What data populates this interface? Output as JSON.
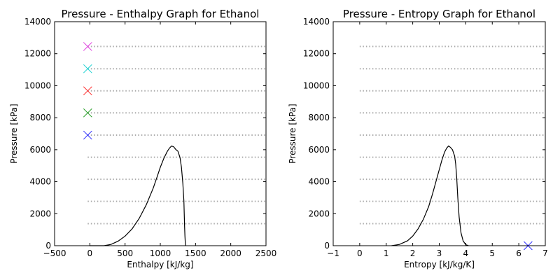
{
  "chart_data": [
    {
      "type": "line",
      "title": "Pressure - Enthalpy Graph for Ethanol",
      "xlabel": "Enthalpy [kJ/kg]",
      "ylabel": "Pressure [kPa]",
      "xlim": [
        -500,
        2500
      ],
      "ylim": [
        0,
        14000
      ],
      "xticks": [
        -500,
        0,
        500,
        1000,
        1500,
        2000,
        2500
      ],
      "yticks": [
        0,
        2000,
        4000,
        6000,
        8000,
        10000,
        12000,
        14000
      ],
      "grid": false,
      "saturation_dome": {
        "x": [
          0,
          200,
          300,
          400,
          500,
          600,
          700,
          800,
          900,
          950,
          1000,
          1050,
          1100,
          1130,
          1160,
          1190,
          1220,
          1250,
          1280,
          1300,
          1320,
          1335,
          1340,
          1345,
          1350,
          1355,
          1360
        ],
        "y": [
          0,
          0,
          80,
          280,
          600,
          1050,
          1700,
          2550,
          3600,
          4250,
          4900,
          5450,
          5900,
          6100,
          6230,
          6180,
          6020,
          5900,
          5500,
          4900,
          3900,
          2800,
          2000,
          1200,
          600,
          200,
          0
        ]
      },
      "isobars": {
        "pressures": [
          1380,
          2770,
          4150,
          5530,
          6910,
          8300,
          9680,
          11060,
          12450
        ],
        "x_range": [
          -30,
          2500
        ],
        "line_color": "#a9a9a9"
      },
      "markers": [
        {
          "x": -30,
          "y": 6910,
          "color": "#3232ff"
        },
        {
          "x": -30,
          "y": 8300,
          "color": "#2ca02c"
        },
        {
          "x": -30,
          "y": 9680,
          "color": "#ff3232"
        },
        {
          "x": -30,
          "y": 11060,
          "color": "#22d3d3"
        },
        {
          "x": -30,
          "y": 12450,
          "color": "#e03ce0"
        }
      ]
    },
    {
      "type": "line",
      "title": "Pressure - Entropy Graph for Ethanol",
      "xlabel": "Entropy [kJ/kg/K]",
      "ylabel": "Pressure [kPa]",
      "xlim": [
        -1,
        7
      ],
      "ylim": [
        0,
        14000
      ],
      "xticks": [
        -1,
        0,
        1,
        2,
        3,
        4,
        5,
        6,
        7
      ],
      "yticks": [
        0,
        2000,
        4000,
        6000,
        8000,
        10000,
        12000,
        14000
      ],
      "grid": false,
      "saturation_dome": {
        "x": [
          1.2,
          1.5,
          1.8,
          2.0,
          2.2,
          2.4,
          2.6,
          2.75,
          2.9,
          3.0,
          3.1,
          3.2,
          3.28,
          3.35,
          3.42,
          3.5,
          3.58,
          3.62,
          3.66,
          3.7,
          3.75,
          3.82,
          3.9,
          4.0,
          4.1
        ],
        "y": [
          0,
          80,
          300,
          600,
          1050,
          1650,
          2450,
          3250,
          4150,
          4750,
          5350,
          5850,
          6100,
          6230,
          6150,
          6000,
          5600,
          5100,
          4200,
          3000,
          1800,
          800,
          300,
          60,
          0
        ]
      },
      "isobars": {
        "pressures": [
          1380,
          2770,
          4150,
          5530,
          6910,
          8300,
          9680,
          11060,
          12450
        ],
        "x_range": [
          0,
          7
        ],
        "line_color": "#a9a9a9"
      },
      "markers": [
        {
          "x": 6.35,
          "y": 0,
          "color": "#3232ff"
        }
      ]
    }
  ]
}
